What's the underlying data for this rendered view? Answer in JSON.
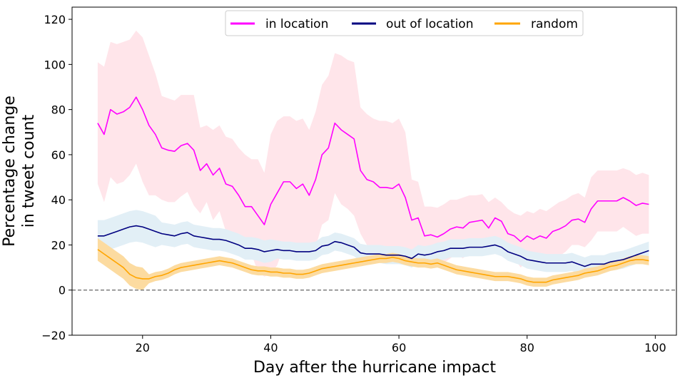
{
  "chart_data": {
    "type": "line",
    "xlabel": "Day after the hurricane impact",
    "ylabel": [
      "Percentage change",
      "in tweet count"
    ],
    "xlim": [
      9,
      103.3
    ],
    "ylim": [
      -20,
      125.4
    ],
    "xticks": [
      20,
      40,
      60,
      80,
      100
    ],
    "yticks": [
      -20,
      0,
      20,
      40,
      60,
      80,
      100,
      120
    ],
    "grid": false,
    "legend_position": "top-center",
    "reference_line": {
      "y": 0,
      "style": "dashed",
      "color": "#666666"
    },
    "x": [
      13,
      14,
      15,
      16,
      17,
      18,
      19,
      20,
      21,
      22,
      23,
      24,
      25,
      26,
      27,
      28,
      29,
      30,
      31,
      32,
      33,
      34,
      35,
      36,
      37,
      38,
      39,
      40,
      41,
      42,
      43,
      44,
      45,
      46,
      47,
      48,
      49,
      50,
      51,
      52,
      53,
      54,
      55,
      56,
      57,
      58,
      59,
      60,
      61,
      62,
      63,
      64,
      65,
      66,
      67,
      68,
      69,
      70,
      71,
      72,
      73,
      74,
      75,
      76,
      77,
      78,
      79,
      80,
      81,
      82,
      83,
      84,
      85,
      86,
      87,
      88,
      89,
      90,
      91,
      92,
      93,
      94,
      95,
      96,
      97,
      98,
      99
    ],
    "series": [
      {
        "name": "in location",
        "color": "#ff00ff",
        "band_color": "#ffe5ea",
        "values": [
          74,
          69,
          80,
          78,
          79,
          81,
          85.5,
          80,
          73,
          69,
          63,
          62,
          61.5,
          64,
          65,
          62,
          53,
          56,
          51,
          54,
          47,
          46,
          42,
          37,
          37,
          33,
          29,
          38,
          43,
          48,
          48,
          45,
          47,
          42,
          49,
          60,
          63,
          74,
          71,
          69,
          67,
          53,
          49,
          48,
          45.5,
          45.5,
          45,
          47,
          41,
          31,
          32,
          24,
          24.5,
          23.5,
          25,
          27,
          28,
          27.5,
          30,
          30.5,
          31,
          27.5,
          32,
          30.5,
          25,
          24,
          21.5,
          24,
          22.5,
          24,
          23,
          26,
          27,
          28.5,
          31,
          31.5,
          30,
          36,
          39.5,
          39.5,
          39.5,
          39.5,
          41,
          39.5,
          37.5,
          38.5,
          38
        ],
        "upper": [
          101,
          99,
          110,
          109,
          110,
          111,
          115,
          112,
          104,
          96,
          86,
          85,
          84,
          86.5,
          86.5,
          86.5,
          72,
          73,
          71,
          73,
          68,
          67,
          63,
          60,
          58,
          58,
          52,
          69,
          75,
          77,
          77,
          75,
          76,
          71,
          79,
          91,
          95,
          105,
          104,
          102,
          101,
          81,
          78,
          76,
          75,
          75,
          74,
          76,
          70,
          49,
          48,
          37,
          37,
          36.5,
          38,
          40,
          40,
          41,
          42,
          42,
          42.5,
          39,
          41,
          39,
          36,
          34,
          33,
          35,
          34,
          36,
          35,
          37,
          39,
          40,
          42,
          43,
          41,
          50,
          53,
          53,
          53,
          53,
          54,
          53,
          51,
          52,
          51
        ],
        "lower": [
          47,
          39,
          50,
          47,
          48,
          51,
          56,
          48,
          42,
          42,
          40,
          39,
          39,
          41.5,
          43.5,
          37.5,
          34,
          39,
          31,
          35,
          26,
          25,
          21,
          14,
          16,
          8,
          6,
          7,
          11,
          19,
          19,
          15,
          18,
          13,
          19,
          29,
          31,
          43,
          38,
          36,
          33,
          25,
          20,
          20,
          16,
          16,
          16,
          18,
          12,
          13,
          16,
          11,
          12,
          10.5,
          12,
          14,
          16,
          14,
          18,
          19,
          19.5,
          16,
          23,
          22,
          14,
          14,
          10,
          13,
          11,
          12,
          11,
          15,
          15,
          17,
          20,
          20,
          19,
          22,
          26,
          26,
          26,
          26,
          28,
          26,
          24,
          25,
          25
        ]
      },
      {
        "name": "out of location",
        "color": "#000080",
        "band_color": "#e2eff6",
        "values": [
          24,
          24,
          25,
          26,
          27,
          28,
          28.5,
          28,
          27,
          26,
          25,
          24.5,
          24,
          25,
          25.5,
          24,
          23.5,
          23,
          22.5,
          22.5,
          22,
          21,
          20,
          18.5,
          18.5,
          18,
          17,
          17.5,
          18,
          17.5,
          17.5,
          17,
          17,
          17,
          17.5,
          19.5,
          20,
          21.5,
          21,
          20,
          19,
          16.5,
          16,
          16,
          16,
          15.5,
          15.5,
          15.5,
          15,
          14,
          16,
          15.5,
          16,
          17,
          17.5,
          18.5,
          18.5,
          18.5,
          19,
          19,
          19,
          19.5,
          20,
          19,
          17,
          16,
          15,
          13.5,
          13,
          12.5,
          12,
          12,
          12,
          12,
          12.5,
          11.5,
          10.5,
          11.5,
          11.5,
          11.5,
          12.5,
          13,
          13.5,
          14.5,
          15.5,
          16.5,
          17.5
        ],
        "upper": [
          31,
          31,
          32,
          33,
          34,
          35,
          35.5,
          35,
          34,
          33,
          30,
          29.5,
          29,
          30,
          30.5,
          29,
          28.5,
          28,
          27.5,
          27.5,
          27,
          26,
          25,
          23.5,
          23.5,
          23,
          22,
          22.5,
          22,
          21.5,
          21.5,
          21,
          21,
          21,
          21.5,
          23.5,
          24,
          25.5,
          25,
          24,
          23,
          20.5,
          20,
          20,
          20,
          19.5,
          19.5,
          19.5,
          19,
          18,
          20,
          19.5,
          20,
          21,
          21.5,
          22.5,
          22.5,
          22.5,
          23,
          23,
          23,
          23.5,
          24,
          23,
          21,
          20,
          19,
          17.5,
          17,
          16.5,
          16,
          16,
          16,
          16,
          16.5,
          15.5,
          14.5,
          15.5,
          15.5,
          15.5,
          16.5,
          17,
          17.5,
          18.5,
          19.5,
          20.5,
          21.5
        ],
        "lower": [
          17,
          17,
          18,
          19,
          20,
          21,
          21.5,
          21,
          20,
          19,
          20,
          19.5,
          19,
          20,
          20.5,
          19,
          18.5,
          18,
          17.5,
          17.5,
          17,
          16,
          15,
          13.5,
          13.5,
          13,
          12,
          12.5,
          14,
          13.5,
          13.5,
          13,
          13,
          13,
          13.5,
          15.5,
          16,
          17.5,
          17,
          16,
          15,
          12.5,
          12,
          12,
          12,
          11.5,
          11.5,
          11.5,
          11,
          10,
          12,
          11.5,
          12,
          13,
          13.5,
          14.5,
          14.5,
          14.5,
          15,
          15,
          15,
          15.5,
          16,
          15,
          13,
          12,
          11,
          9.5,
          9,
          8.5,
          8,
          8,
          8,
          8,
          8.5,
          7.5,
          6.5,
          7.5,
          7.5,
          7.5,
          8.5,
          9,
          9.5,
          10.5,
          11.5,
          12.5,
          13.5
        ]
      },
      {
        "name": "random",
        "color": "#ffa500",
        "band_color": "#fcdba0",
        "values": [
          18,
          16,
          14,
          12,
          10,
          7,
          5.5,
          5,
          5,
          6,
          6.5,
          7.5,
          9,
          10,
          10.5,
          11,
          11.5,
          12,
          12.5,
          13,
          12.5,
          12,
          11,
          10,
          9,
          8.5,
          8.5,
          8,
          8,
          7.5,
          7.5,
          7,
          7,
          7.5,
          8.5,
          9.5,
          10,
          10.5,
          11,
          11.5,
          12,
          12.5,
          13,
          13.5,
          14,
          14,
          14.5,
          14,
          13,
          12.5,
          12,
          12,
          11.5,
          12,
          11,
          10,
          9,
          8.5,
          8,
          7.5,
          7,
          6.5,
          6,
          6,
          6,
          5.5,
          5,
          4,
          3.5,
          3.5,
          3.5,
          4.5,
          5,
          5.5,
          6,
          6.5,
          7.5,
          8,
          8.5,
          9.5,
          10.5,
          11,
          12,
          13,
          13.5,
          13.5,
          13
        ],
        "upper": [
          23,
          21,
          19,
          17,
          15,
          12,
          10.5,
          10,
          7,
          8,
          8.5,
          9.5,
          11,
          12,
          12.5,
          13,
          13.5,
          14,
          14.5,
          15,
          14.5,
          14,
          13,
          12,
          11,
          10.5,
          10.5,
          10,
          10,
          9.5,
          9.5,
          9,
          9,
          9.5,
          10.5,
          11.5,
          12,
          12.5,
          13,
          13.5,
          14,
          14.5,
          15,
          15.5,
          16,
          16,
          16.5,
          16,
          15,
          14.5,
          14,
          14,
          13.5,
          14,
          13,
          12,
          11,
          10.5,
          10,
          9.5,
          9,
          8.5,
          8,
          8,
          8,
          7.5,
          7,
          6,
          5.5,
          5.5,
          5.5,
          6.5,
          7,
          7.5,
          8,
          8.5,
          9.5,
          10,
          10.5,
          11.5,
          12.5,
          13,
          14,
          15,
          15.5,
          15.5,
          15
        ],
        "lower": [
          13,
          11,
          9,
          7,
          5,
          2,
          0.5,
          0,
          3,
          4,
          4.5,
          5.5,
          7,
          8,
          8.5,
          9,
          9.5,
          10,
          10.5,
          11,
          10.5,
          10,
          9,
          8,
          7,
          6.5,
          6.5,
          6,
          6,
          5.5,
          5.5,
          5,
          5,
          5.5,
          6.5,
          7.5,
          8,
          8.5,
          9,
          9.5,
          10,
          10.5,
          11,
          11.5,
          12,
          12,
          12.5,
          12,
          11,
          10.5,
          10,
          10,
          9.5,
          10,
          9,
          8,
          7,
          6.5,
          6,
          5.5,
          5,
          4.5,
          4,
          4,
          4,
          3.5,
          3,
          2,
          1.5,
          1.5,
          1.5,
          2.5,
          3,
          3.5,
          4,
          4.5,
          5.5,
          6,
          6.5,
          7.5,
          8.5,
          9,
          10,
          11,
          11.5,
          11.5,
          11
        ]
      }
    ]
  }
}
